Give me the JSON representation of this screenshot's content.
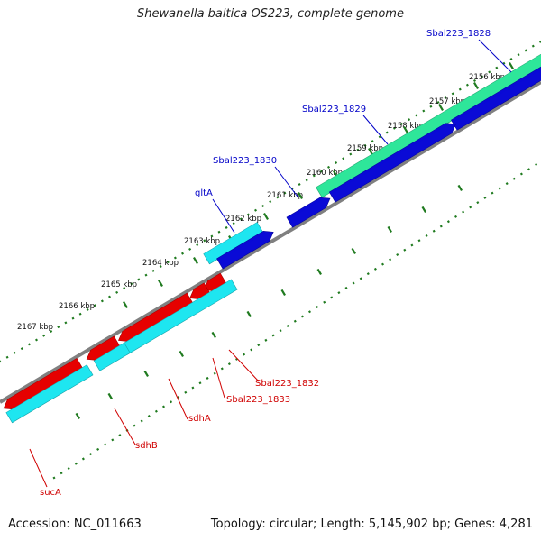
{
  "title": "Shewanella baltica OS223, complete genome",
  "footer": {
    "accession": "Accession: NC_011663",
    "summary": "Topology: circular; Length: 5,145,902 bp; Genes: 4,281"
  },
  "colors": {
    "background": "#ffffff",
    "backbone": "#808080",
    "tick": "#1f7a1f",
    "gene_red": "#e60000",
    "gene_cyan": "#1ee6f0",
    "gene_blue": "#0a0ad6",
    "gene_green": "#2ee69a",
    "label_blue": "#0000c8",
    "label_red": "#d00000"
  },
  "scale": {
    "unit": "kbp",
    "ticks": [
      {
        "pos": 2156,
        "label": "2156 kbp"
      },
      {
        "pos": 2157,
        "label": "2157 kbp"
      },
      {
        "pos": 2158,
        "label": "2158 kbp"
      },
      {
        "pos": 2159,
        "label": "2159 kbp"
      },
      {
        "pos": 2160,
        "label": "2160 kbp"
      },
      {
        "pos": 2161,
        "label": "2161 kbp"
      },
      {
        "pos": 2162,
        "label": "2162 kbp"
      },
      {
        "pos": 2163,
        "label": "2163 kbp"
      },
      {
        "pos": 2164,
        "label": "2164 kbp"
      },
      {
        "pos": 2165,
        "label": "2165 kbp"
      },
      {
        "pos": 2166,
        "label": "2166 kbp"
      },
      {
        "pos": 2167,
        "label": "2167 kbp"
      }
    ]
  },
  "features": [
    {
      "name": "Sbal223_1828",
      "strand": "forward",
      "color": "gene_green",
      "label_color": "label_blue"
    },
    {
      "name": "Sbal223_1828",
      "strand": "forward",
      "color": "gene_blue",
      "label_color": "label_blue"
    },
    {
      "name": "Sbal223_1829",
      "strand": "forward",
      "color": "gene_blue",
      "label_color": "label_blue"
    },
    {
      "name": "Sbal223_1830",
      "strand": "forward",
      "color": "gene_blue",
      "label_color": "label_blue"
    },
    {
      "name": "gltA",
      "strand": "forward",
      "color": "gene_cyan",
      "label_color": "label_blue"
    },
    {
      "name": "gltA",
      "strand": "forward",
      "color": "gene_blue",
      "label_color": "label_blue"
    },
    {
      "name": "Sbal223_1832",
      "strand": "reverse",
      "color": "gene_red",
      "label_color": "label_red"
    },
    {
      "name": "Sbal223_1833",
      "strand": "reverse",
      "color": "gene_red",
      "label_color": "label_red"
    },
    {
      "name": "sdhA",
      "strand": "reverse",
      "color": "gene_red",
      "label_color": "label_red"
    },
    {
      "name": "sdhA",
      "strand": "reverse",
      "color": "gene_cyan",
      "label_color": "label_red"
    },
    {
      "name": "sdhB",
      "strand": "reverse",
      "color": "gene_red",
      "label_color": "label_red"
    },
    {
      "name": "sdhB",
      "strand": "reverse",
      "color": "gene_cyan",
      "label_color": "label_red"
    },
    {
      "name": "sucA",
      "strand": "reverse",
      "color": "gene_red",
      "label_color": "label_red"
    },
    {
      "name": "sucA",
      "strand": "reverse",
      "color": "gene_cyan",
      "label_color": "label_red"
    }
  ],
  "labels": [
    {
      "text": "Sbal223_1828",
      "color": "label_blue"
    },
    {
      "text": "Sbal223_1829",
      "color": "label_blue"
    },
    {
      "text": "Sbal223_1830",
      "color": "label_blue"
    },
    {
      "text": "gltA",
      "color": "label_blue"
    },
    {
      "text": "Sbal223_1832",
      "color": "label_red"
    },
    {
      "text": "Sbal223_1833",
      "color": "label_red"
    },
    {
      "text": "sdhA",
      "color": "label_red"
    },
    {
      "text": "sdhB",
      "color": "label_red"
    },
    {
      "text": "sucA",
      "color": "label_red"
    }
  ]
}
